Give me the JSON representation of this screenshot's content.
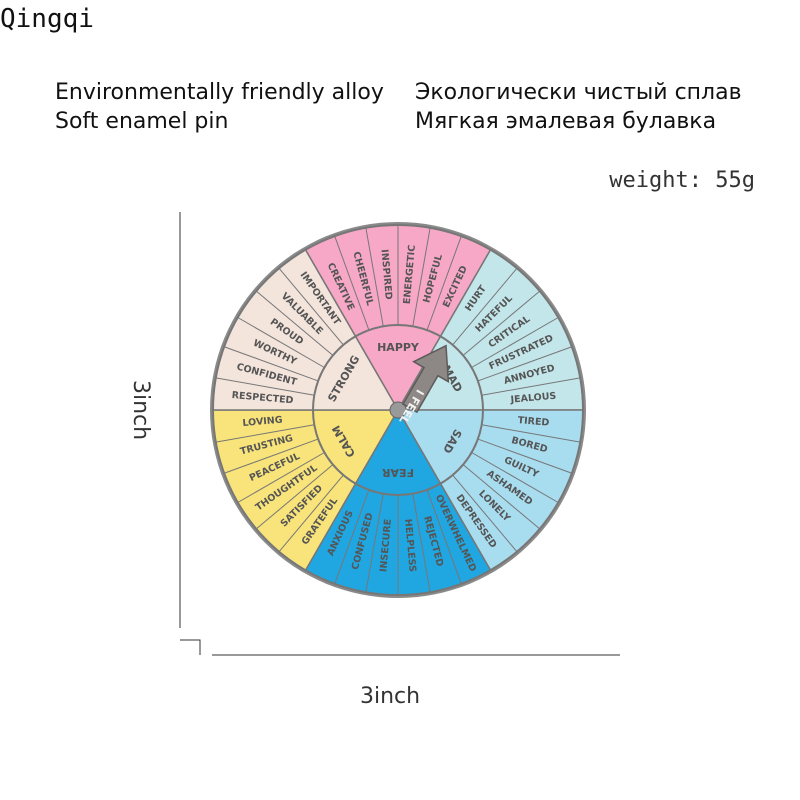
{
  "brand": "Qingqi",
  "features": [
    {
      "en": "Environmentally friendly alloy",
      "ru": "Экологически чистый сплав"
    },
    {
      "en": "Soft enamel pin",
      "ru": "Мягкая эмалевая булавка"
    }
  ],
  "weight": "weight: 55g",
  "dimensions": {
    "height": "3inch",
    "width": "3inch"
  },
  "wheel": {
    "center_label": "I FEEL",
    "sectors": [
      {
        "name": "HAPPY",
        "color": "#f6a8c6",
        "words": [
          "CREATIVE",
          "CHEERFUL",
          "INSPIRED",
          "ENERGETIC",
          "HOPEFUL",
          "EXCITED"
        ]
      },
      {
        "name": "MAD",
        "color": "#c3e6ea",
        "words": [
          "HURT",
          "HATEFUL",
          "CRITICAL",
          "FRUSTRATED",
          "ANNOYED",
          "JEALOUS"
        ]
      },
      {
        "name": "SAD",
        "color": "#a8dcef",
        "words": [
          "TIRED",
          "BORED",
          "GUILTY",
          "ASHAMED",
          "LONELY",
          "DEPRESSED"
        ]
      },
      {
        "name": "FEAR",
        "color": "#20a6e0",
        "words": [
          "OVERWHELMED",
          "REJECTED",
          "HELPLESS",
          "INSECURE",
          "CONFUSED",
          "ANXIOUS"
        ]
      },
      {
        "name": "CALM",
        "color": "#f8e47a",
        "words": [
          "GRATEFUL",
          "SATISFIED",
          "THOUGHTFUL",
          "PEACEFUL",
          "TRUSTING",
          "LOVING"
        ]
      },
      {
        "name": "STRONG",
        "color": "#f3e4dc",
        "words": [
          "RESPECTED",
          "CONFIDENT",
          "WORTHY",
          "PROUD",
          "VALUABLE",
          "IMPORTANT"
        ]
      }
    ]
  }
}
